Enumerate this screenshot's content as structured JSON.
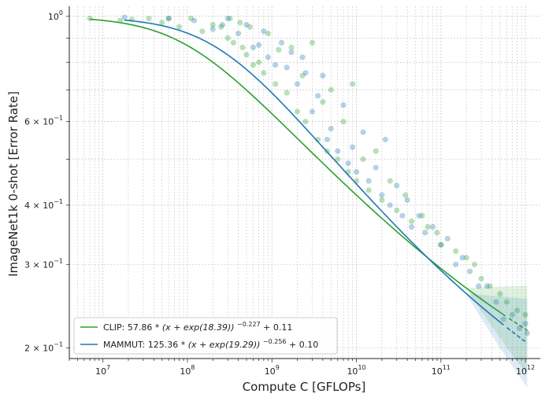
{
  "chart_data": {
    "type": "scatter",
    "xlabel": "Compute C [GFLOPs]",
    "ylabel": "ImageNet1k 0-shot [Error Rate]",
    "xscale": "log",
    "yscale": "log",
    "xlim": [
      4000000,
      1500000000000
    ],
    "ylim": [
      0.19,
      1.05
    ],
    "grid": true,
    "legend_position": "lower-left",
    "x_ticks": [
      {
        "value": 10000000,
        "base": "10",
        "exp": "7"
      },
      {
        "value": 100000000,
        "base": "10",
        "exp": "8"
      },
      {
        "value": 1000000000,
        "base": "10",
        "exp": "9"
      },
      {
        "value": 10000000000,
        "base": "10",
        "exp": "10"
      },
      {
        "value": 100000000000,
        "base": "10",
        "exp": "11"
      },
      {
        "value": 1000000000000,
        "base": "10",
        "exp": "12"
      }
    ],
    "y_ticks": [
      {
        "value": 1.0,
        "mant": "",
        "base": "10",
        "exp": "0"
      },
      {
        "value": 0.6,
        "mant": "6 × ",
        "base": "10",
        "exp": "−1"
      },
      {
        "value": 0.4,
        "mant": "4 × ",
        "base": "10",
        "exp": "−1"
      },
      {
        "value": 0.3,
        "mant": "3 × ",
        "base": "10",
        "exp": "−1"
      },
      {
        "value": 0.2,
        "mant": "2 × ",
        "base": "10",
        "exp": "−1"
      }
    ],
    "series": [
      {
        "name": "CLIP",
        "color": "#2ca02c",
        "legend_prefix": "CLIP: 57.86",
        "legend_base": "(x + exp(18.39))",
        "legend_exp": "−0.227",
        "legend_suffix": " + 0.11",
        "fit": {
          "a": 57.86,
          "b": 18.39,
          "alpha": -0.227,
          "e": 0.11
        },
        "points": [
          [
            7000000,
            0.99
          ],
          [
            16000000,
            0.98
          ],
          [
            22000000,
            0.985
          ],
          [
            35000000,
            0.99
          ],
          [
            50000000,
            0.97
          ],
          [
            60000000,
            0.99
          ],
          [
            80000000,
            0.95
          ],
          [
            110000000,
            0.99
          ],
          [
            150000000,
            0.93
          ],
          [
            200000000,
            0.96
          ],
          [
            250000000,
            0.95
          ],
          [
            300000000,
            0.9
          ],
          [
            320000000,
            0.99
          ],
          [
            350000000,
            0.88
          ],
          [
            420000000,
            0.97
          ],
          [
            450000000,
            0.86
          ],
          [
            500000000,
            0.83
          ],
          [
            550000000,
            0.95
          ],
          [
            600000000,
            0.79
          ],
          [
            700000000,
            0.8
          ],
          [
            800000000,
            0.76
          ],
          [
            900000000,
            0.92
          ],
          [
            1100000000,
            0.72
          ],
          [
            1200000000,
            0.85
          ],
          [
            1500000000,
            0.69
          ],
          [
            1700000000,
            0.86
          ],
          [
            2000000000,
            0.63
          ],
          [
            2300000000,
            0.75
          ],
          [
            2500000000,
            0.6
          ],
          [
            3000000000,
            0.88
          ],
          [
            3500000000,
            0.55
          ],
          [
            4000000000,
            0.66
          ],
          [
            4500000000,
            0.52
          ],
          [
            5000000000,
            0.7
          ],
          [
            6000000000,
            0.5
          ],
          [
            7000000000,
            0.6
          ],
          [
            8000000000,
            0.47
          ],
          [
            9000000000,
            0.72
          ],
          [
            10000000000,
            0.45
          ],
          [
            12000000000,
            0.5
          ],
          [
            14000000000,
            0.43
          ],
          [
            17000000000,
            0.52
          ],
          [
            20000000000,
            0.41
          ],
          [
            25000000000,
            0.45
          ],
          [
            30000000000,
            0.39
          ],
          [
            38000000000,
            0.42
          ],
          [
            45000000000,
            0.37
          ],
          [
            60000000000,
            0.38
          ],
          [
            70000000000,
            0.36
          ],
          [
            90000000000,
            0.35
          ],
          [
            100000000000,
            0.33
          ],
          [
            150000000000,
            0.32
          ],
          [
            200000000000,
            0.31
          ],
          [
            250000000000,
            0.3
          ],
          [
            300000000000,
            0.28
          ],
          [
            380000000000,
            0.27
          ],
          [
            500000000000,
            0.26
          ],
          [
            600000000000,
            0.25
          ],
          [
            800000000000,
            0.24
          ],
          [
            1000000000000,
            0.235
          ]
        ]
      },
      {
        "name": "MAMMUT",
        "color": "#1f77b4",
        "legend_prefix": "MAMMUT: 125.36",
        "legend_base": "(x + exp(19.29))",
        "legend_exp": "−0.256",
        "legend_suffix": " + 0.10",
        "fit": {
          "a": 125.36,
          "b": 19.29,
          "alpha": -0.256,
          "e": 0.1
        },
        "points": [
          [
            18000000,
            0.995
          ],
          [
            60000000,
            0.99
          ],
          [
            120000000,
            0.98
          ],
          [
            200000000,
            0.94
          ],
          [
            260000000,
            0.96
          ],
          [
            300000000,
            0.99
          ],
          [
            400000000,
            0.92
          ],
          [
            500000000,
            0.96
          ],
          [
            600000000,
            0.86
          ],
          [
            700000000,
            0.87
          ],
          [
            800000000,
            0.93
          ],
          [
            900000000,
            0.82
          ],
          [
            1100000000,
            0.79
          ],
          [
            1300000000,
            0.88
          ],
          [
            1500000000,
            0.78
          ],
          [
            1700000000,
            0.84
          ],
          [
            2000000000,
            0.72
          ],
          [
            2300000000,
            0.82
          ],
          [
            2500000000,
            0.76
          ],
          [
            3000000000,
            0.63
          ],
          [
            3500000000,
            0.68
          ],
          [
            4000000000,
            0.75
          ],
          [
            4500000000,
            0.55
          ],
          [
            5000000000,
            0.58
          ],
          [
            6000000000,
            0.52
          ],
          [
            7000000000,
            0.65
          ],
          [
            8000000000,
            0.49
          ],
          [
            9000000000,
            0.53
          ],
          [
            10000000000,
            0.47
          ],
          [
            12000000000,
            0.57
          ],
          [
            14000000000,
            0.45
          ],
          [
            17000000000,
            0.48
          ],
          [
            20000000000,
            0.42
          ],
          [
            22000000000,
            0.55
          ],
          [
            25000000000,
            0.4
          ],
          [
            30000000000,
            0.44
          ],
          [
            35000000000,
            0.38
          ],
          [
            40000000000,
            0.41
          ],
          [
            45000000000,
            0.36
          ],
          [
            55000000000,
            0.38
          ],
          [
            65000000000,
            0.35
          ],
          [
            80000000000,
            0.36
          ],
          [
            100000000000,
            0.33
          ],
          [
            120000000000,
            0.34
          ],
          [
            150000000000,
            0.3
          ],
          [
            180000000000,
            0.31
          ],
          [
            220000000000,
            0.29
          ],
          [
            280000000000,
            0.27
          ],
          [
            350000000000,
            0.27
          ],
          [
            450000000000,
            0.25
          ],
          [
            550000000000,
            0.23
          ],
          [
            700000000000,
            0.235
          ],
          [
            850000000000,
            0.22
          ],
          [
            1000000000000,
            0.225
          ],
          [
            1050000000000,
            0.215
          ]
        ]
      }
    ]
  }
}
